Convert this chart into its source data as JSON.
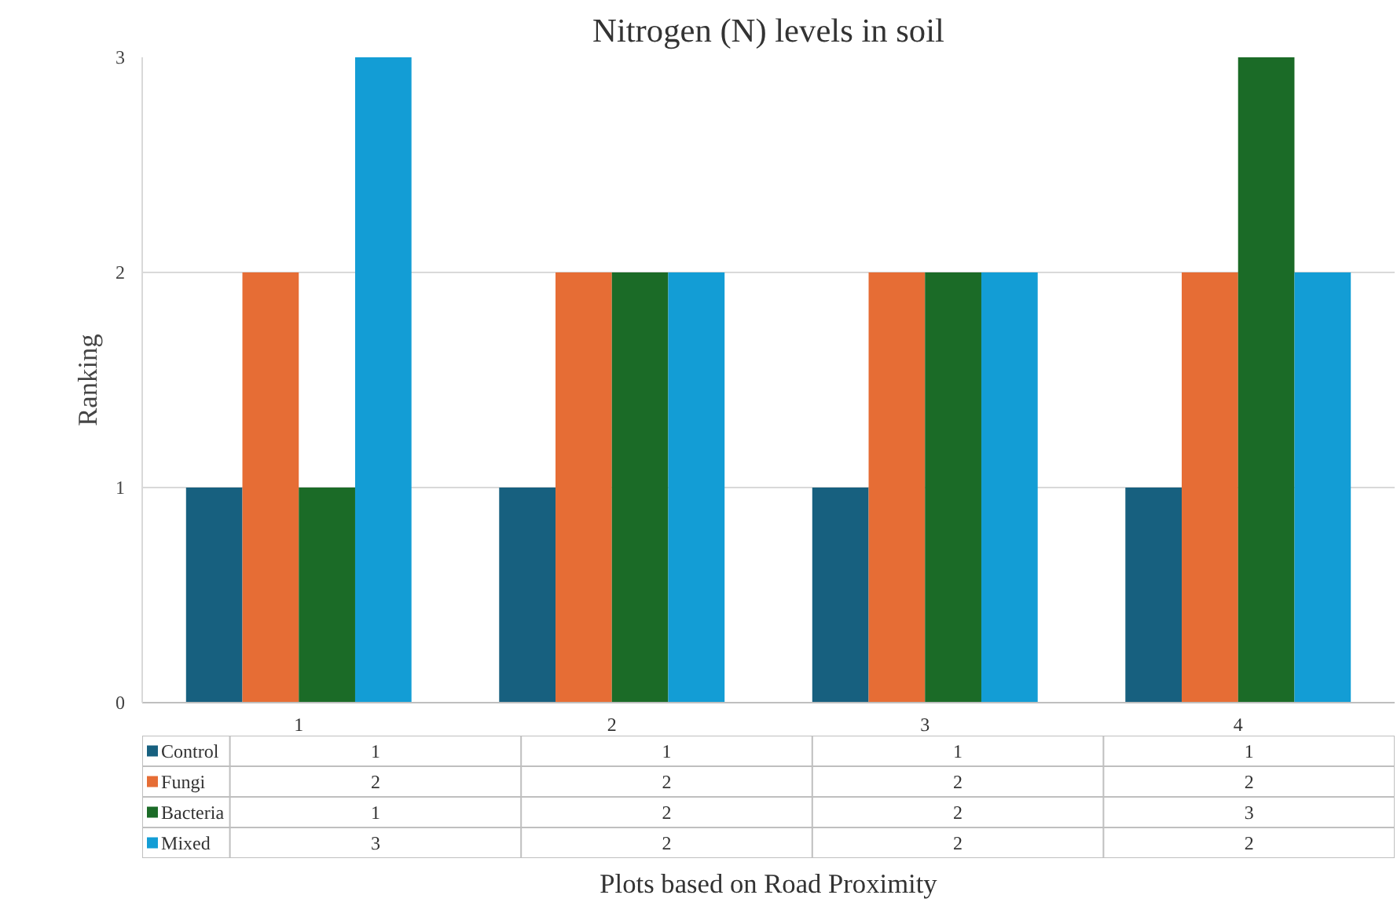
{
  "chart_data": {
    "type": "bar",
    "title": "Nitrogen (N) levels in soil",
    "xlabel": "Plots based on Road Proximity",
    "ylabel": "Ranking",
    "categories": [
      "1",
      "2",
      "3",
      "4"
    ],
    "series": [
      {
        "name": "Control",
        "color": "#17607f",
        "values": [
          1,
          1,
          1,
          1
        ]
      },
      {
        "name": "Fungi",
        "color": "#e66d35",
        "values": [
          2,
          2,
          2,
          2
        ]
      },
      {
        "name": "Bacteria",
        "color": "#1b6b27",
        "values": [
          1,
          2,
          2,
          3
        ]
      },
      {
        "name": "Mixed",
        "color": "#139dd5",
        "values": [
          3,
          2,
          2,
          2
        ]
      }
    ],
    "ylim": [
      0,
      3
    ],
    "yticks": [
      0,
      1,
      2,
      3
    ],
    "grid": "y",
    "legend": "bottom",
    "data_labels": true
  }
}
